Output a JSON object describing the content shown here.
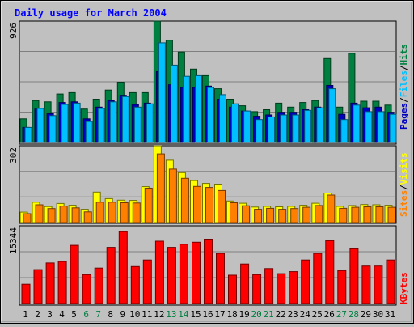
{
  "chart_data": [
    {
      "type": "bar",
      "title": "Daily usage for March 2004",
      "x_labels": [
        "1",
        "2",
        "3",
        "4",
        "5",
        "6",
        "7",
        "8",
        "9",
        "10",
        "11",
        "12",
        "13",
        "14",
        "15",
        "16",
        "17",
        "18",
        "19",
        "20",
        "21",
        "22",
        "23",
        "24",
        "25",
        "26",
        "27",
        "28",
        "29",
        "30",
        "31"
      ],
      "weekend_days": [
        "6",
        "7",
        "13",
        "14",
        "20",
        "21",
        "27",
        "28"
      ],
      "ymax_label": "926",
      "ylim": [
        0,
        926
      ],
      "series": [
        {
          "name": "Hits",
          "color": "#008040",
          "values": [
            180,
            320,
            310,
            370,
            380,
            255,
            330,
            400,
            460,
            380,
            380,
            926,
            780,
            690,
            560,
            510,
            410,
            330,
            280,
            235,
            250,
            300,
            270,
            305,
            320,
            640,
            270,
            680,
            315,
            315,
            285
          ]
        },
        {
          "name": "Pages",
          "color": "#0000c0",
          "values": [
            115,
            255,
            220,
            305,
            310,
            180,
            270,
            320,
            360,
            290,
            300,
            540,
            440,
            420,
            420,
            430,
            330,
            270,
            240,
            200,
            210,
            230,
            230,
            250,
            270,
            435,
            215,
            300,
            265,
            270,
            230
          ]
        },
        {
          "name": "Files",
          "color": "#00c0ff",
          "values": [
            115,
            260,
            205,
            290,
            300,
            160,
            260,
            310,
            350,
            270,
            295,
            760,
            590,
            505,
            510,
            420,
            365,
            295,
            240,
            175,
            195,
            210,
            210,
            245,
            265,
            410,
            175,
            285,
            235,
            235,
            215
          ]
        }
      ],
      "legend": [
        "Pages",
        "Files",
        "Hits"
      ]
    },
    {
      "type": "bar",
      "x_labels": [
        "1",
        "2",
        "3",
        "4",
        "5",
        "6",
        "7",
        "8",
        "9",
        "10",
        "11",
        "12",
        "13",
        "14",
        "15",
        "16",
        "17",
        "18",
        "19",
        "20",
        "21",
        "22",
        "23",
        "24",
        "25",
        "26",
        "27",
        "28",
        "29",
        "30",
        "31"
      ],
      "ymax_label": "302",
      "ylim": [
        0,
        302
      ],
      "series": [
        {
          "name": "Visits",
          "color": "#ffff00",
          "values": [
            41,
            80,
            63,
            75,
            68,
            52,
            120,
            94,
            88,
            87,
            141,
            302,
            245,
            196,
            165,
            154,
            151,
            85,
            76,
            61,
            64,
            62,
            64,
            68,
            76,
            116,
            64,
            67,
            71,
            70,
            68
          ]
        },
        {
          "name": "Sites",
          "color": "#ff8000",
          "values": [
            35,
            70,
            55,
            65,
            58,
            42,
            80,
            80,
            78,
            77,
            135,
            270,
            210,
            174,
            142,
            138,
            126,
            78,
            66,
            52,
            56,
            52,
            55,
            60,
            67,
            108,
            56,
            60,
            62,
            62,
            60
          ]
        }
      ],
      "legend": [
        "Sites",
        "Visits"
      ]
    },
    {
      "type": "bar",
      "x_labels": [
        "1",
        "2",
        "3",
        "4",
        "5",
        "6",
        "7",
        "8",
        "9",
        "10",
        "11",
        "12",
        "13",
        "14",
        "15",
        "16",
        "17",
        "18",
        "19",
        "20",
        "21",
        "22",
        "23",
        "24",
        "25",
        "26",
        "27",
        "28",
        "29",
        "30",
        "31"
      ],
      "ymax_label": "15344",
      "ylim": [
        0,
        15344
      ],
      "series": [
        {
          "name": "KBytes",
          "color": "#ff0000",
          "values": [
            3800,
            6700,
            8000,
            8300,
            11500,
            5700,
            7000,
            11100,
            14200,
            7300,
            8600,
            12300,
            11100,
            11700,
            12100,
            12700,
            9900,
            5600,
            7800,
            5700,
            6900,
            5900,
            6300,
            8600,
            9900,
            12400,
            6500,
            10800,
            7400,
            7400,
            8600
          ]
        }
      ],
      "legend": [
        "KBytes"
      ]
    }
  ],
  "colors": {
    "background": "#c0c0c0",
    "title": "#0000ff",
    "weekday_label": "#000000",
    "weekend_label": "#008040",
    "gridline": "#808080"
  }
}
